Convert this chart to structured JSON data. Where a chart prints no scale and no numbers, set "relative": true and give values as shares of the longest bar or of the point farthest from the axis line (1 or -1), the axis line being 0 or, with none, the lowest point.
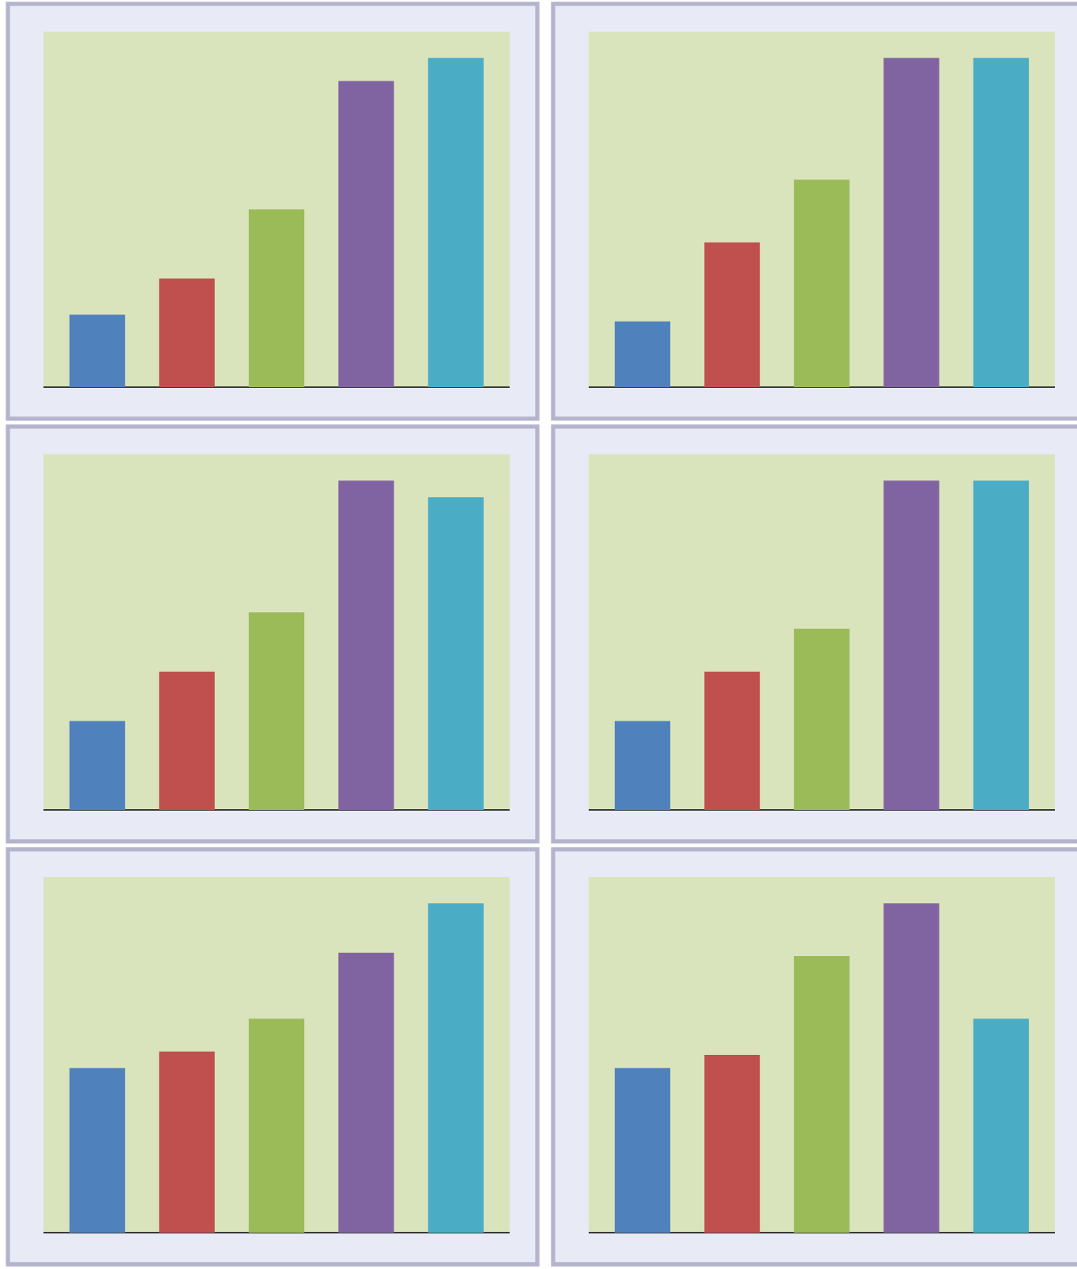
{
  "chart_data": [
    {
      "type": "bar",
      "relative": true,
      "categories": [
        null,
        null,
        null,
        null,
        null
      ],
      "colors": [
        "#4f81bd",
        "#c0504d",
        "#9bbb59",
        "#8064a2",
        "#4bacc6"
      ],
      "values": [
        0.22,
        0.33,
        0.54,
        0.93,
        1
      ]
    },
    {
      "type": "bar",
      "relative": true,
      "categories": [
        null,
        null,
        null,
        null,
        null
      ],
      "colors": [
        "#4f81bd",
        "#c0504d",
        "#9bbb59",
        "#8064a2",
        "#4bacc6"
      ],
      "values": [
        0.2,
        0.44,
        0.63,
        1,
        1
      ]
    },
    {
      "type": "bar",
      "relative": true,
      "categories": [
        null,
        null,
        null,
        null,
        null
      ],
      "colors": [
        "#4f81bd",
        "#c0504d",
        "#9bbb59",
        "#8064a2",
        "#4bacc6"
      ],
      "values": [
        0.27,
        0.42,
        0.6,
        1,
        0.95
      ]
    },
    {
      "type": "bar",
      "relative": true,
      "categories": [
        null,
        null,
        null,
        null,
        null
      ],
      "colors": [
        "#4f81bd",
        "#c0504d",
        "#9bbb59",
        "#8064a2",
        "#4bacc6"
      ],
      "values": [
        0.27,
        0.42,
        0.55,
        1,
        1
      ]
    },
    {
      "type": "bar",
      "relative": true,
      "categories": [
        null,
        null,
        null,
        null,
        null
      ],
      "colors": [
        "#4f81bd",
        "#c0504d",
        "#9bbb59",
        "#8064a2",
        "#4bacc6"
      ],
      "values": [
        0.5,
        0.55,
        0.65,
        0.85,
        1
      ]
    },
    {
      "type": "bar",
      "relative": true,
      "categories": [
        null,
        null,
        null,
        null,
        null
      ],
      "colors": [
        "#4f81bd",
        "#c0504d",
        "#9bbb59",
        "#8064a2",
        "#4bacc6"
      ],
      "values": [
        0.5,
        0.54,
        0.84,
        1,
        0.65
      ]
    }
  ]
}
